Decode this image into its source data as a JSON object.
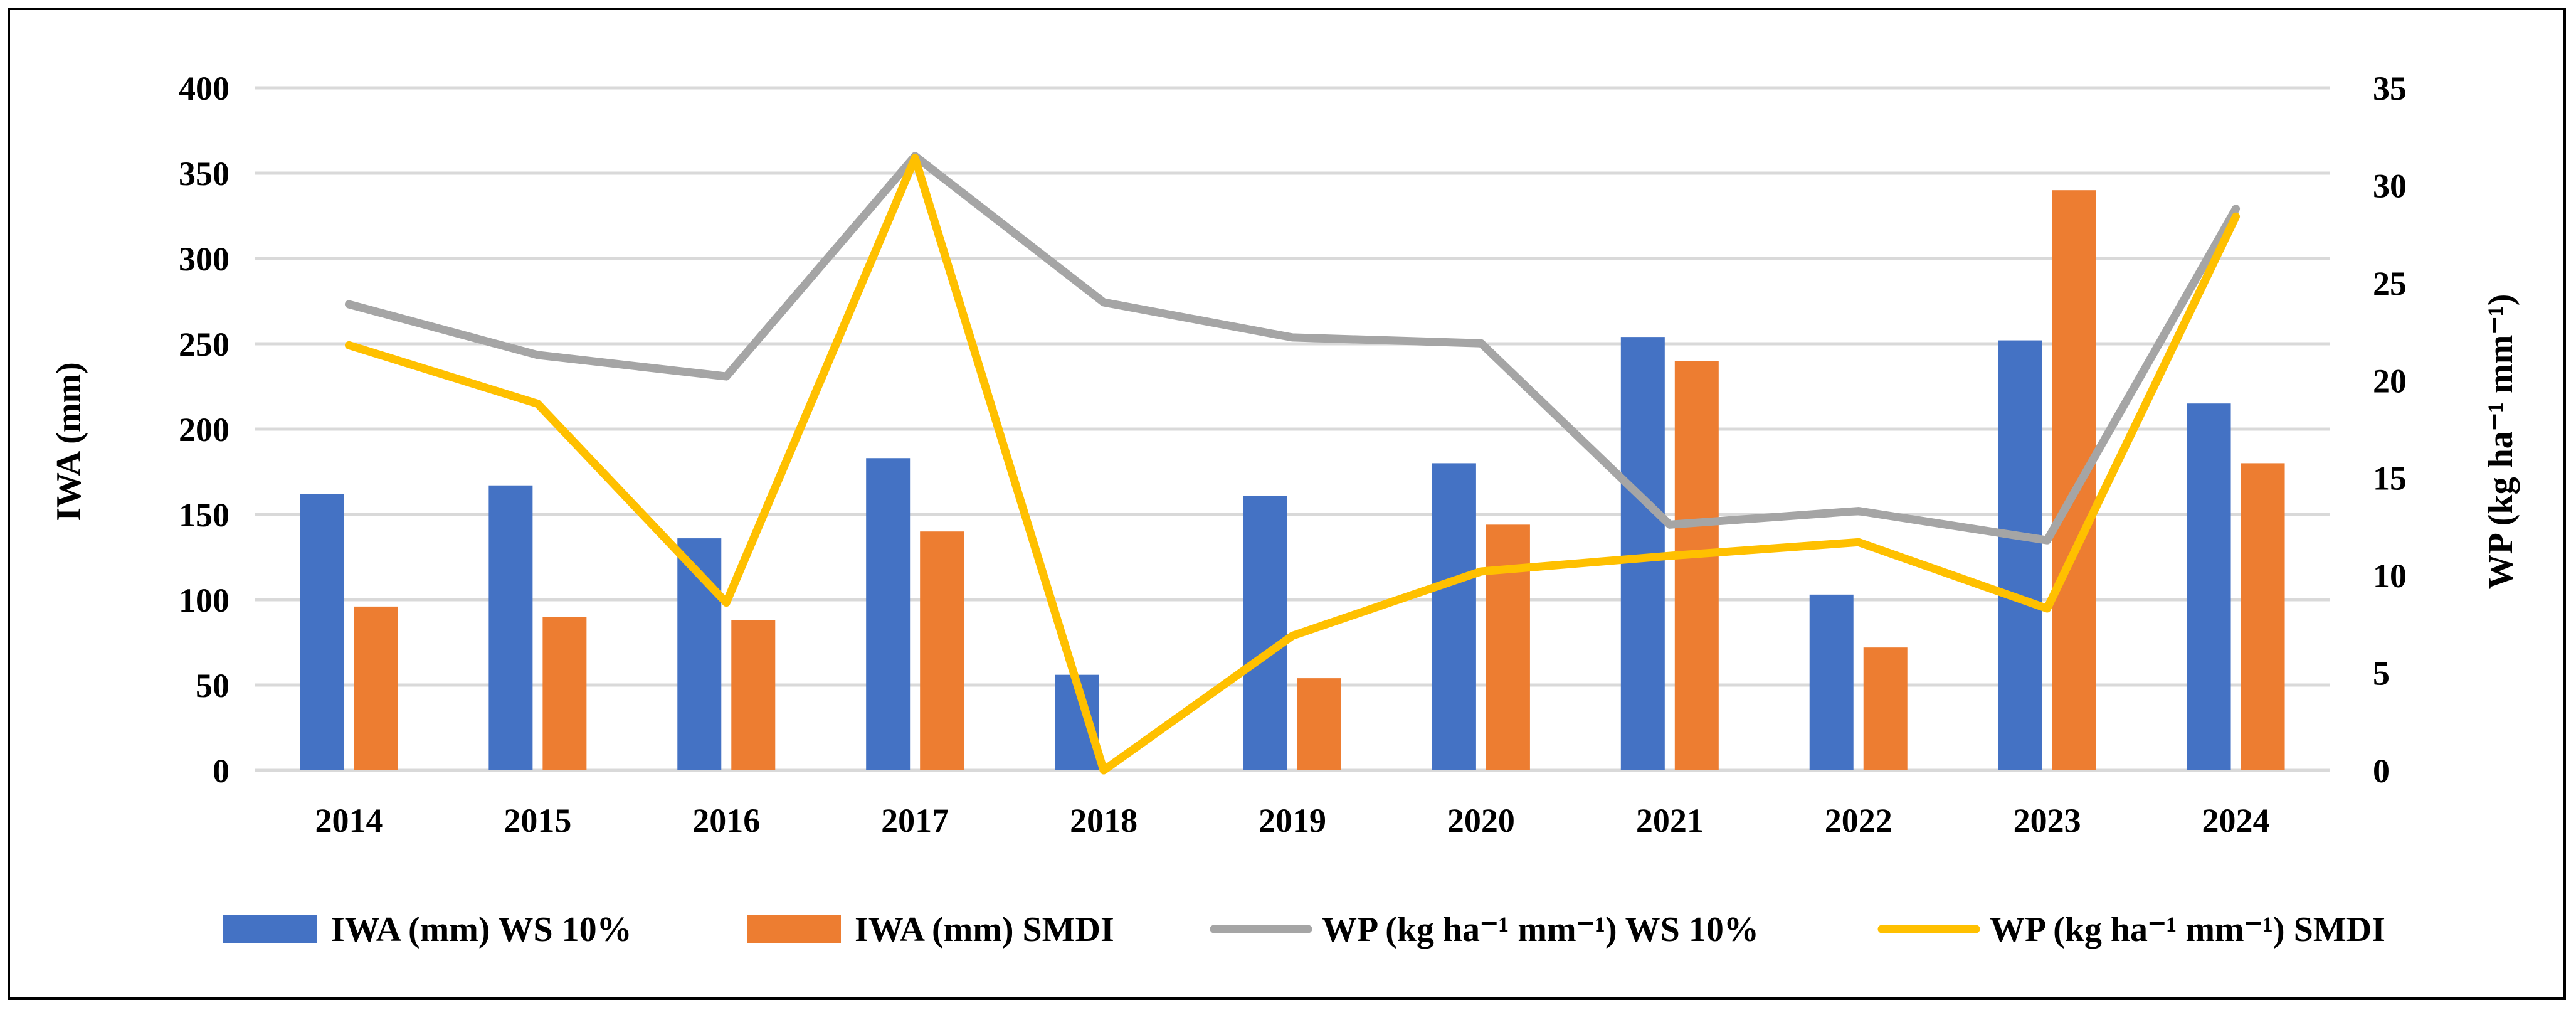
{
  "chart_data": {
    "type": "bar",
    "title": "",
    "categories": [
      "2014",
      "2015",
      "2016",
      "2017",
      "2018",
      "2019",
      "2020",
      "2021",
      "2022",
      "2023",
      "2024"
    ],
    "y_axis": {
      "label": "IWA (mm)",
      "ylim": [
        0,
        400
      ],
      "ticks": [
        "0",
        "50",
        "100",
        "150",
        "200",
        "250",
        "300",
        "350",
        "400"
      ],
      "grid": true
    },
    "y2_axis": {
      "label": "WP (kg ha⁻¹ mm⁻¹)",
      "ylim": [
        0,
        35
      ],
      "ticks": [
        "0",
        "5",
        "10",
        "15",
        "20",
        "25",
        "30",
        "35"
      ]
    },
    "series": [
      {
        "name": "IWA (mm) WS 10%",
        "kind": "bar",
        "axis": "left",
        "color": "#4472C4",
        "values": [
          162,
          167,
          136,
          183,
          56,
          161,
          180,
          254,
          103,
          252,
          215
        ]
      },
      {
        "name": "IWA (mm) SMDI",
        "kind": "bar",
        "axis": "left",
        "color": "#ED7D31",
        "values": [
          96,
          90,
          88,
          140,
          null,
          54,
          144,
          240,
          72,
          340,
          180
        ]
      },
      {
        "name": "WP (kg ha⁻¹ mm⁻¹) WS 10%",
        "kind": "line",
        "axis": "right",
        "color": "#A5A5A5",
        "values": [
          23.9,
          21.3,
          20.2,
          31.5,
          24.0,
          22.2,
          21.9,
          12.6,
          13.3,
          11.8,
          28.8
        ]
      },
      {
        "name": "WP (kg ha⁻¹ mm⁻¹) SMDI",
        "kind": "line",
        "axis": "right",
        "color": "#FFC000",
        "values": [
          21.8,
          18.8,
          8.6,
          31.4,
          0.0,
          6.9,
          10.2,
          11.0,
          11.7,
          8.3,
          28.4
        ]
      }
    ],
    "legend": {
      "position": "bottom"
    }
  }
}
